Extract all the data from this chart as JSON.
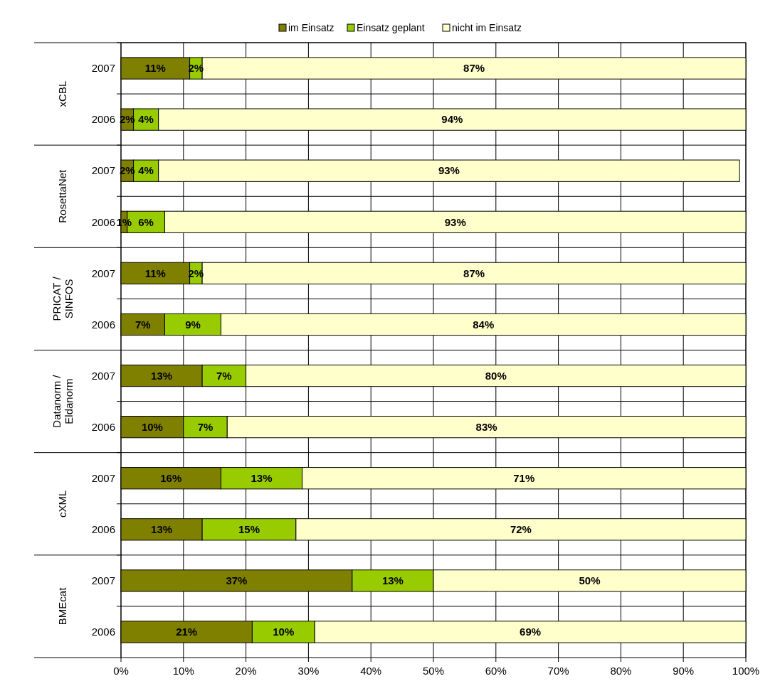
{
  "chart_data": {
    "type": "bar",
    "orientation": "horizontal",
    "stacked": true,
    "grid": true,
    "legend": "top",
    "categories": [
      "2007",
      "2006",
      "2007",
      "2006",
      "2007",
      "2006",
      "2007",
      "2006",
      "2007",
      "2006",
      "2007",
      "2006"
    ],
    "annotations": [
      "xCBL",
      "RosettaNet",
      "PRICAT /\nSINFOS",
      "Datanorm /\nEldanorm",
      "cXML",
      "BMEcat"
    ],
    "series": [
      {
        "name": "im Einsatz",
        "color": "#808000",
        "values": [
          11,
          2,
          2,
          1,
          11,
          7,
          13,
          10,
          16,
          13,
          37,
          21
        ],
        "value_labels": [
          "11%",
          "2%",
          "2%",
          "1%",
          "11%",
          "7%",
          "13%",
          "10%",
          "16%",
          "13%",
          "37%",
          "21%"
        ]
      },
      {
        "name": "Einsatz geplant",
        "color": "#99cc00",
        "values": [
          2,
          4,
          4,
          6,
          2,
          9,
          7,
          7,
          13,
          15,
          13,
          10
        ],
        "value_labels": [
          "2%",
          "4%",
          "4%",
          "6%",
          "2%",
          "9%",
          "7%",
          "7%",
          "13%",
          "15%",
          "13%",
          "10%"
        ]
      },
      {
        "name": "nicht im Einsatz",
        "color": "#ffffcc",
        "values": [
          87,
          94,
          93,
          93,
          87,
          84,
          80,
          83,
          71,
          72,
          50,
          69
        ],
        "value_labels": [
          "87%",
          "94%",
          "93%",
          "93%",
          "87%",
          "84%",
          "80%",
          "83%",
          "71%",
          "72%",
          "50%",
          "69%"
        ]
      }
    ],
    "xlim": [
      0,
      100
    ],
    "xticks": [
      {
        "value": 0,
        "label": "0%"
      },
      {
        "value": 10,
        "label": "10%"
      },
      {
        "value": 20,
        "label": "20%"
      },
      {
        "value": 30,
        "label": "30%"
      },
      {
        "value": 40,
        "label": "40%"
      },
      {
        "value": 50,
        "label": "50%"
      },
      {
        "value": 60,
        "label": "60%"
      },
      {
        "value": 70,
        "label": "70%"
      },
      {
        "value": 80,
        "label": "80%"
      },
      {
        "value": 90,
        "label": "90%"
      },
      {
        "value": 100,
        "label": "100%"
      }
    ]
  }
}
